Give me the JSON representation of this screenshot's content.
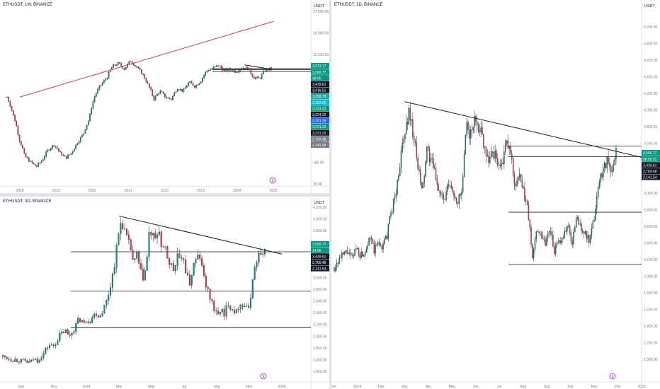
{
  "panes": [
    {
      "id": "weekly",
      "title": "ETHUSDT, 1W, BINANCE",
      "currency": "USDT",
      "y_ticks": [
        "27,500.00",
        "19,500.00",
        "12,500.00",
        "6,500.00",
        "3,500.00",
        "210.00",
        "150.00",
        "105.00",
        "75.00"
      ],
      "x_ticks": [
        "2018",
        "2019",
        "2020",
        "2021",
        "2022",
        "2023",
        "2024",
        "2025"
      ],
      "price_labels": [
        {
          "text": "3,573.17",
          "bg": "#089981"
        },
        {
          "text": "3,566.77",
          "bg": "#089981"
        },
        {
          "text": "48.9h",
          "bg": "#089981"
        },
        {
          "text": "3,439.61",
          "bg": "#131722"
        },
        {
          "text": "3,416.51",
          "bg": "#131722"
        },
        {
          "text": "3,398.78",
          "bg": "#26a69a"
        },
        {
          "text": "3,352.00",
          "bg": "#00bcd4"
        },
        {
          "text": "3,324.22",
          "bg": "#089981"
        },
        {
          "text": "3,324.22",
          "bg": "#131722"
        },
        {
          "text": "3,261.28",
          "bg": "#2962ff"
        },
        {
          "text": "3,231.22",
          "bg": "#089981"
        },
        {
          "text": "3,231.22",
          "bg": "#131722"
        },
        {
          "text": "2,769.48",
          "bg": "#787b86"
        },
        {
          "text": "2,141.54",
          "bg": "#787b86"
        }
      ]
    },
    {
      "id": "threeday",
      "title": "ETHUSDT, 3D, BINANCE",
      "currency": "USDT",
      "y_ticks": [
        "4,200.00",
        "4,000.00",
        "3,800.00",
        "3,600.00",
        "3,400.00",
        "3,200.00",
        "3,000.00",
        "2,800.00",
        "2,600.00",
        "2,400.00",
        "2,200.00",
        "2,000.00",
        "1,800.00",
        "1,600.00",
        "1,400.00"
      ],
      "x_ticks": [
        "Sep",
        "Nov",
        "2024",
        "Mar",
        "May",
        "Jul",
        "Sep",
        "Nov",
        "2025"
      ],
      "price_labels": [
        {
          "text": "3,566.77",
          "bg": "#089981"
        },
        {
          "text": "14.9h",
          "bg": "#089981"
        },
        {
          "text": "3,439.61",
          "bg": "#131722"
        },
        {
          "text": "2,769.48",
          "bg": "#131722"
        },
        {
          "text": "2,141.54",
          "bg": "#131722"
        }
      ]
    },
    {
      "id": "daily",
      "title": "ETHUSDT, 1D, BINANCE",
      "currency": "USDT",
      "y_ticks": [
        "5,000.00",
        "4,800.00",
        "4,600.00",
        "4,400.00",
        "4,200.00",
        "4,000.00",
        "3,800.00",
        "3,600.00",
        "3,400.00",
        "3,200.00",
        "3,000.00",
        "2,800.00",
        "2,600.00",
        "2,400.00",
        "2,200.00",
        "2,000.00",
        "1,800.00",
        "1,600.00",
        "1,400.00",
        "1,200.00",
        "1,000.00"
      ],
      "x_ticks": [
        "Dec",
        "2024",
        "Feb",
        "Mar",
        "Apr",
        "May",
        "Jun",
        "Jul",
        "Aug",
        "Sep",
        "Oct",
        "Nov",
        "Dec",
        "2025"
      ],
      "price_labels": [
        {
          "text": "3,566.77",
          "bg": "#089981"
        },
        {
          "text": "08:05:31",
          "bg": "#089981"
        },
        {
          "text": "3,439.61",
          "bg": "#131722"
        },
        {
          "text": "2,769.48",
          "bg": "#131722"
        },
        {
          "text": "2,141.54",
          "bg": "#131722"
        }
      ]
    }
  ],
  "chart_data": [
    {
      "type": "candlestick",
      "symbol": "ETHUSDT",
      "interval": "1W",
      "exchange": "BINANCE",
      "scale": "log",
      "x": [
        "2018",
        "2019",
        "2020",
        "2021",
        "2022",
        "2023",
        "2024",
        "2025"
      ],
      "close_path": [
        1300,
        700,
        300,
        160,
        130,
        110,
        140,
        200,
        240,
        180,
        150,
        180,
        260,
        350,
        600,
        1400,
        2000,
        2600,
        3900,
        4300,
        3500,
        4700,
        3800,
        3000,
        2000,
        1200,
        1600,
        1300,
        1200,
        1800,
        1600,
        2200,
        1900,
        2300,
        3300,
        3600,
        4000,
        3300,
        3500,
        3200,
        3700,
        3600,
        2600,
        2500,
        3400,
        3560
      ],
      "trendlines": [
        {
          "from": [
            "2018",
            1300
          ],
          "to": [
            "2025",
            19000
          ],
          "color": "#f23645"
        },
        {
          "from": [
            "2024 Mar",
            4050
          ],
          "to": [
            "2024 Dec",
            3500
          ],
          "color": "#131722"
        }
      ],
      "levels": [
        3573.17,
        3439.61,
        3231.22
      ]
    },
    {
      "type": "candlestick",
      "symbol": "ETHUSDT",
      "interval": "3D",
      "exchange": "BINANCE",
      "x": [
        "Sep",
        "Nov",
        "2024",
        "Mar",
        "May",
        "Jul",
        "Sep",
        "Nov",
        "2025"
      ],
      "ylim": [
        1400,
        4200
      ],
      "close_path": [
        1650,
        1640,
        1620,
        1600,
        1600,
        1590,
        1570,
        1580,
        1550,
        1560,
        1620,
        1580,
        1640,
        1700,
        1800,
        1850,
        1820,
        1890,
        2000,
        2050,
        2100,
        2000,
        2050,
        2150,
        2250,
        2300,
        2200,
        2300,
        2280,
        2350,
        2400,
        2330,
        2450,
        2550,
        2750,
        3000,
        3300,
        3700,
        4000,
        3800,
        3600,
        3500,
        3200,
        3400,
        3100,
        3000,
        3200,
        3800,
        3700,
        3600,
        3900,
        3400,
        3500,
        3300,
        3200,
        3100,
        3400,
        3200,
        3350,
        3000,
        2900,
        3200,
        3300,
        3400,
        3100,
        2900,
        2700,
        2600,
        2400,
        2350,
        2500,
        2300,
        2600,
        2500,
        2450,
        2400,
        2600,
        2500,
        2550,
        2400,
        3000,
        3200,
        3400,
        3300,
        3566
      ],
      "trendline": {
        "from": [
          "Mar",
          4050
        ],
        "to": [
          "2025",
          3400
        ]
      },
      "levels": [
        3439.61,
        2769.48,
        2141.54
      ]
    },
    {
      "type": "candlestick",
      "symbol": "ETHUSDT",
      "interval": "1D",
      "exchange": "BINANCE",
      "x": [
        "Dec",
        "2024",
        "Feb",
        "Mar",
        "Apr",
        "May",
        "Jun",
        "Jul",
        "Aug",
        "Sep",
        "Oct",
        "Nov",
        "Dec",
        "2025"
      ],
      "ylim": [
        1000,
        5000
      ],
      "close_path": [
        2100,
        2200,
        2250,
        2300,
        2200,
        2350,
        2250,
        2300,
        2500,
        2300,
        2400,
        2350,
        2500,
        2800,
        3000,
        3400,
        3700,
        4000,
        3700,
        3300,
        3000,
        3500,
        3400,
        3200,
        3000,
        2900,
        3100,
        3000,
        2900,
        3000,
        3800,
        3700,
        3900,
        3800,
        3600,
        3400,
        3500,
        3400,
        3300,
        3600,
        3500,
        3100,
        3200,
        3000,
        2800,
        2200,
        2600,
        2500,
        2400,
        2600,
        2300,
        2400,
        2500,
        2600,
        2400,
        2700,
        2600,
        2500,
        2400,
        2700,
        3100,
        3300,
        3400,
        3200,
        3566
      ],
      "trendline": {
        "from": [
          "Mar",
          4100
        ],
        "to": [
          "2025",
          3430
        ]
      },
      "levels": [
        3566.77,
        3439.61,
        2769.48,
        2141.54
      ]
    }
  ]
}
